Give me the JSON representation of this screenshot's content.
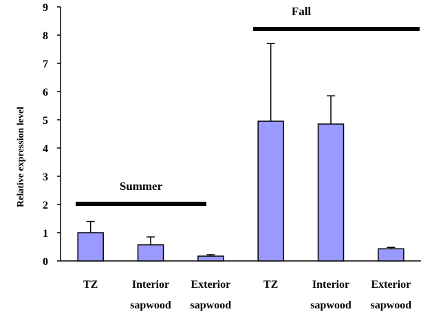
{
  "chart_data": {
    "type": "bar",
    "ylabel": "Relative expression level",
    "ylim": [
      0,
      9
    ],
    "yticks": [
      "0",
      "1",
      "2",
      "3",
      "4",
      "5",
      "6",
      "7",
      "8",
      "9"
    ],
    "bar_color": "#9999ff",
    "categories": [
      {
        "line1": "TZ",
        "line2": ""
      },
      {
        "line1": "Interior",
        "line2": "sapwood"
      },
      {
        "line1": "Exterior",
        "line2": "sapwood"
      },
      {
        "line1": "TZ",
        "line2": ""
      },
      {
        "line1": "Interior",
        "line2": "sapwood"
      },
      {
        "line1": "Exterior",
        "line2": "sapwood"
      }
    ],
    "values": [
      1.0,
      0.57,
      0.17,
      4.95,
      4.85,
      0.43
    ],
    "errors": [
      0.4,
      0.28,
      0.05,
      2.75,
      1.0,
      0.05
    ],
    "groups": [
      {
        "label": "Summer",
        "from": 0,
        "to": 2
      },
      {
        "label": "Fall",
        "from": 3,
        "to": 5
      }
    ]
  }
}
